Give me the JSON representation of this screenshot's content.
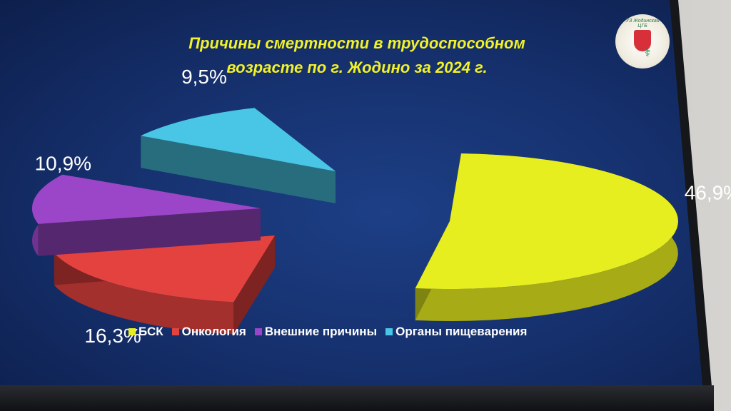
{
  "slide": {
    "title_line1": "Причины смертности в трудоспособном",
    "title_line2": "возрасте по г. Жодино за 2024 г.",
    "logo_text": "УЗ Жодинская ЦГБ"
  },
  "chart_data": {
    "type": "pie",
    "title": "Причины смертности в трудоспособном возрасте по г. Жодино за 2024 г.",
    "categories": [
      "БСК",
      "Онкология",
      "Внешние причины",
      "Органы пищеварения"
    ],
    "values": [
      46.9,
      16.3,
      10.9,
      9.5
    ],
    "value_labels": [
      "46,9%",
      "16,3%",
      "10,9%",
      "9,5%"
    ],
    "colors": [
      "#e6ee1f",
      "#e4423f",
      "#9b46c8",
      "#49c6e5"
    ],
    "legend_position": "bottom",
    "style": "3d-exploded"
  }
}
